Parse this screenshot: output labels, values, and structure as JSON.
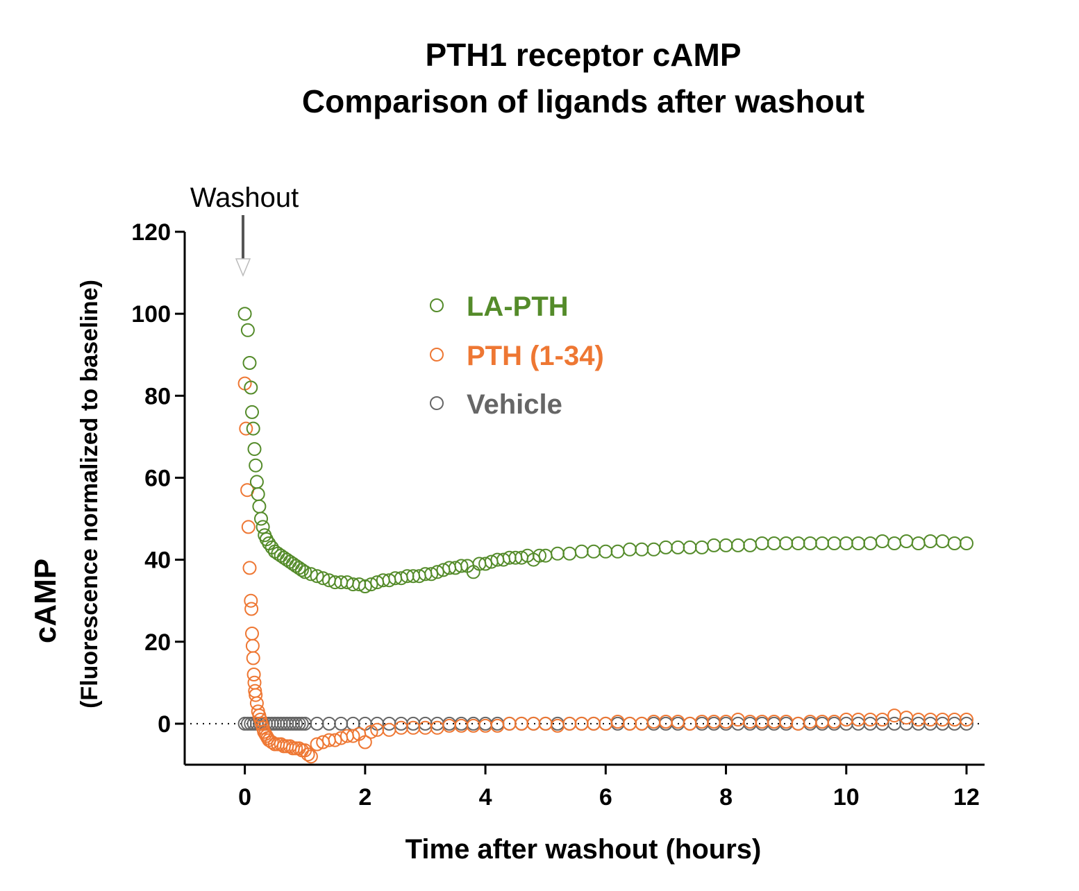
{
  "chart_data": {
    "type": "scatter",
    "title": "PTH1 receptor cAMP",
    "subtitle": "Comparison of ligands after washout",
    "xlabel": "Time after washout (hours)",
    "ylabel": "cAMP",
    "ylabel_sub": "(Fluorescence normalized to baseline)",
    "xlim": [
      -1,
      12.3
    ],
    "ylim": [
      -10,
      120
    ],
    "x_ticks": [
      0,
      2,
      4,
      6,
      8,
      10,
      12
    ],
    "y_ticks": [
      0,
      20,
      40,
      60,
      80,
      100,
      120
    ],
    "x_tick_labels": [
      "0",
      "2",
      "4",
      "6",
      "8",
      "10",
      "12"
    ],
    "y_tick_labels": [
      "0",
      "20",
      "40",
      "60",
      "80",
      "100",
      "120"
    ],
    "annotation": {
      "text": "Washout",
      "x": 0
    },
    "reference_line_y": 0,
    "legend_position": "top-center",
    "series": [
      {
        "name": "LA-PTH",
        "color": "#548b2a",
        "points": [
          [
            0,
            100
          ],
          [
            0.05,
            96
          ],
          [
            0.08,
            88
          ],
          [
            0.1,
            82
          ],
          [
            0.12,
            76
          ],
          [
            0.14,
            72
          ],
          [
            0.16,
            67
          ],
          [
            0.18,
            63
          ],
          [
            0.2,
            59
          ],
          [
            0.22,
            56
          ],
          [
            0.24,
            53
          ],
          [
            0.27,
            50
          ],
          [
            0.3,
            48
          ],
          [
            0.33,
            46
          ],
          [
            0.36,
            45
          ],
          [
            0.4,
            44
          ],
          [
            0.45,
            43
          ],
          [
            0.5,
            42
          ],
          [
            0.55,
            41.5
          ],
          [
            0.6,
            41
          ],
          [
            0.65,
            40.5
          ],
          [
            0.7,
            40
          ],
          [
            0.75,
            39.5
          ],
          [
            0.8,
            39
          ],
          [
            0.85,
            38.5
          ],
          [
            0.9,
            38
          ],
          [
            0.95,
            37.5
          ],
          [
            1.0,
            37
          ],
          [
            1.1,
            36.5
          ],
          [
            1.2,
            36
          ],
          [
            1.3,
            35.5
          ],
          [
            1.4,
            35
          ],
          [
            1.5,
            34.5
          ],
          [
            1.6,
            34.5
          ],
          [
            1.7,
            34.5
          ],
          [
            1.8,
            34
          ],
          [
            1.9,
            34
          ],
          [
            2.0,
            33.5
          ],
          [
            2.1,
            34
          ],
          [
            2.2,
            34.5
          ],
          [
            2.3,
            35
          ],
          [
            2.4,
            35
          ],
          [
            2.5,
            35.5
          ],
          [
            2.6,
            35.5
          ],
          [
            2.7,
            36
          ],
          [
            2.8,
            36
          ],
          [
            2.9,
            36
          ],
          [
            3.0,
            36.5
          ],
          [
            3.1,
            36.5
          ],
          [
            3.2,
            37
          ],
          [
            3.3,
            37.5
          ],
          [
            3.4,
            38
          ],
          [
            3.5,
            38
          ],
          [
            3.6,
            38.5
          ],
          [
            3.7,
            38.5
          ],
          [
            3.8,
            37
          ],
          [
            3.9,
            39
          ],
          [
            4.0,
            39
          ],
          [
            4.1,
            39.5
          ],
          [
            4.2,
            40
          ],
          [
            4.3,
            40
          ],
          [
            4.4,
            40.5
          ],
          [
            4.5,
            40.5
          ],
          [
            4.6,
            40.5
          ],
          [
            4.7,
            41
          ],
          [
            4.8,
            40
          ],
          [
            4.9,
            41
          ],
          [
            5.0,
            41
          ],
          [
            5.2,
            41.5
          ],
          [
            5.4,
            41.5
          ],
          [
            5.6,
            42
          ],
          [
            5.8,
            42
          ],
          [
            6.0,
            42
          ],
          [
            6.2,
            42
          ],
          [
            6.4,
            42.5
          ],
          [
            6.6,
            42.5
          ],
          [
            6.8,
            42.5
          ],
          [
            7.0,
            43
          ],
          [
            7.2,
            43
          ],
          [
            7.4,
            43
          ],
          [
            7.6,
            43
          ],
          [
            7.8,
            43.5
          ],
          [
            8.0,
            43.5
          ],
          [
            8.2,
            43.5
          ],
          [
            8.4,
            43.5
          ],
          [
            8.6,
            44
          ],
          [
            8.8,
            44
          ],
          [
            9.0,
            44
          ],
          [
            9.2,
            44
          ],
          [
            9.4,
            44
          ],
          [
            9.6,
            44
          ],
          [
            9.8,
            44
          ],
          [
            10.0,
            44
          ],
          [
            10.2,
            44
          ],
          [
            10.4,
            44
          ],
          [
            10.6,
            44.5
          ],
          [
            10.8,
            44
          ],
          [
            11.0,
            44.5
          ],
          [
            11.2,
            44
          ],
          [
            11.4,
            44.5
          ],
          [
            11.6,
            44.5
          ],
          [
            11.8,
            44
          ],
          [
            12.0,
            44
          ]
        ]
      },
      {
        "name": "PTH (1-34)",
        "color": "#ee7733",
        "points": [
          [
            0.0,
            83
          ],
          [
            0.02,
            72
          ],
          [
            0.04,
            57
          ],
          [
            0.06,
            48
          ],
          [
            0.08,
            38
          ],
          [
            0.1,
            30
          ],
          [
            0.11,
            28
          ],
          [
            0.12,
            22
          ],
          [
            0.13,
            19
          ],
          [
            0.14,
            16
          ],
          [
            0.15,
            12
          ],
          [
            0.16,
            10
          ],
          [
            0.17,
            8
          ],
          [
            0.18,
            7
          ],
          [
            0.2,
            5
          ],
          [
            0.22,
            3
          ],
          [
            0.24,
            2
          ],
          [
            0.26,
            1
          ],
          [
            0.28,
            0
          ],
          [
            0.3,
            -1
          ],
          [
            0.32,
            -2
          ],
          [
            0.34,
            -2.5
          ],
          [
            0.36,
            -3
          ],
          [
            0.38,
            -3.5
          ],
          [
            0.4,
            -4
          ],
          [
            0.45,
            -4.5
          ],
          [
            0.5,
            -5
          ],
          [
            0.55,
            -5
          ],
          [
            0.6,
            -5
          ],
          [
            0.65,
            -5.5
          ],
          [
            0.7,
            -5.5
          ],
          [
            0.75,
            -5.5
          ],
          [
            0.8,
            -6
          ],
          [
            0.85,
            -6
          ],
          [
            0.9,
            -6
          ],
          [
            0.95,
            -6.5
          ],
          [
            1.0,
            -6.5
          ],
          [
            1.05,
            -7.5
          ],
          [
            1.1,
            -8
          ],
          [
            1.2,
            -5
          ],
          [
            1.3,
            -4.5
          ],
          [
            1.4,
            -4
          ],
          [
            1.5,
            -4
          ],
          [
            1.6,
            -3.5
          ],
          [
            1.7,
            -3
          ],
          [
            1.8,
            -3
          ],
          [
            1.9,
            -2.5
          ],
          [
            2.0,
            -4.5
          ],
          [
            2.1,
            -2
          ],
          [
            2.2,
            -1.5
          ],
          [
            2.4,
            -1.5
          ],
          [
            2.6,
            -1
          ],
          [
            2.8,
            -1
          ],
          [
            3.0,
            -1
          ],
          [
            3.2,
            -1
          ],
          [
            3.4,
            -0.5
          ],
          [
            3.6,
            -0.5
          ],
          [
            3.8,
            -0.5
          ],
          [
            4.0,
            -0.5
          ],
          [
            4.2,
            -0.5
          ],
          [
            4.4,
            0
          ],
          [
            4.6,
            0
          ],
          [
            4.8,
            0
          ],
          [
            5.0,
            0
          ],
          [
            5.2,
            -0.5
          ],
          [
            5.4,
            0
          ],
          [
            5.6,
            0
          ],
          [
            5.8,
            0
          ],
          [
            6.0,
            0
          ],
          [
            6.2,
            0.5
          ],
          [
            6.4,
            0
          ],
          [
            6.6,
            0
          ],
          [
            6.8,
            0.5
          ],
          [
            7.0,
            0.5
          ],
          [
            7.2,
            0.5
          ],
          [
            7.4,
            0
          ],
          [
            7.6,
            0.5
          ],
          [
            7.8,
            0.5
          ],
          [
            8.0,
            0.5
          ],
          [
            8.2,
            1
          ],
          [
            8.4,
            0.5
          ],
          [
            8.6,
            0.5
          ],
          [
            8.8,
            0.5
          ],
          [
            9.0,
            0.5
          ],
          [
            9.2,
            0
          ],
          [
            9.4,
            0.5
          ],
          [
            9.6,
            0.5
          ],
          [
            9.8,
            0.5
          ],
          [
            10.0,
            1
          ],
          [
            10.2,
            1
          ],
          [
            10.4,
            1
          ],
          [
            10.6,
            1
          ],
          [
            10.8,
            2
          ],
          [
            11.0,
            1.5
          ],
          [
            11.2,
            1
          ],
          [
            11.4,
            1
          ],
          [
            11.6,
            1
          ],
          [
            11.8,
            1
          ],
          [
            12.0,
            1
          ]
        ]
      },
      {
        "name": "Vehicle",
        "color": "#666666",
        "points": [
          [
            0,
            0
          ],
          [
            0.05,
            0
          ],
          [
            0.1,
            0
          ],
          [
            0.15,
            0
          ],
          [
            0.2,
            0
          ],
          [
            0.25,
            0
          ],
          [
            0.3,
            0
          ],
          [
            0.35,
            0
          ],
          [
            0.4,
            0
          ],
          [
            0.45,
            0
          ],
          [
            0.5,
            0
          ],
          [
            0.55,
            0
          ],
          [
            0.6,
            0
          ],
          [
            0.65,
            0
          ],
          [
            0.7,
            0
          ],
          [
            0.75,
            0
          ],
          [
            0.8,
            0
          ],
          [
            0.85,
            0
          ],
          [
            0.9,
            0
          ],
          [
            0.95,
            0
          ],
          [
            1.0,
            0
          ],
          [
            1.2,
            0
          ],
          [
            1.4,
            0
          ],
          [
            1.6,
            0
          ],
          [
            1.8,
            0
          ],
          [
            2.0,
            0
          ],
          [
            2.2,
            0
          ],
          [
            2.4,
            0
          ],
          [
            2.6,
            0
          ],
          [
            2.8,
            0
          ],
          [
            3.0,
            0
          ],
          [
            3.2,
            0
          ],
          [
            3.4,
            0
          ],
          [
            3.6,
            0
          ],
          [
            3.8,
            0
          ],
          [
            4.0,
            0
          ],
          [
            4.2,
            0
          ],
          [
            4.4,
            0
          ],
          [
            4.6,
            0
          ],
          [
            4.8,
            0
          ],
          [
            5.0,
            0
          ],
          [
            5.2,
            0
          ],
          [
            5.4,
            0
          ],
          [
            5.6,
            0
          ],
          [
            5.8,
            0
          ],
          [
            6.0,
            0
          ],
          [
            6.2,
            0
          ],
          [
            6.4,
            0
          ],
          [
            6.6,
            0
          ],
          [
            6.8,
            0
          ],
          [
            7.0,
            0
          ],
          [
            7.2,
            0
          ],
          [
            7.4,
            0
          ],
          [
            7.6,
            0
          ],
          [
            7.8,
            0
          ],
          [
            8.0,
            0
          ],
          [
            8.2,
            0
          ],
          [
            8.4,
            0
          ],
          [
            8.6,
            0
          ],
          [
            8.8,
            0
          ],
          [
            9.0,
            0
          ],
          [
            9.2,
            0
          ],
          [
            9.4,
            0
          ],
          [
            9.6,
            0
          ],
          [
            9.8,
            0
          ],
          [
            10.0,
            0
          ],
          [
            10.2,
            0
          ],
          [
            10.4,
            0
          ],
          [
            10.6,
            0
          ],
          [
            10.8,
            0
          ],
          [
            11.0,
            0
          ],
          [
            11.2,
            0
          ],
          [
            11.4,
            0
          ],
          [
            11.6,
            0
          ],
          [
            11.8,
            0
          ],
          [
            12.0,
            0
          ]
        ]
      }
    ]
  }
}
